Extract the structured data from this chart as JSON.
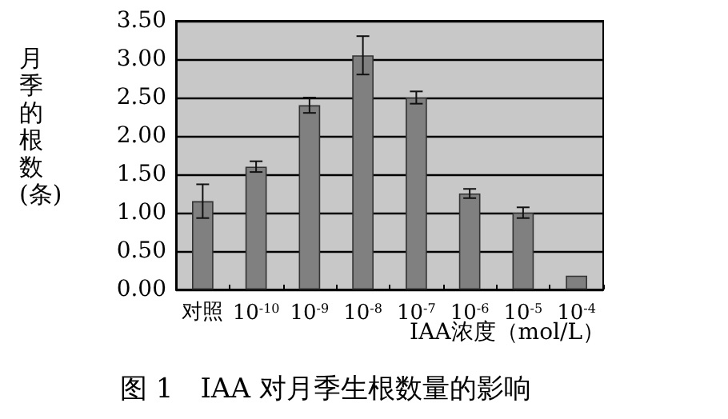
{
  "chart_data": {
    "type": "bar",
    "title": "图 1　IAA 对月季生根数量的影响",
    "xlabel": "IAA浓度（mol/L）",
    "ylabel": "月季的根数(条)",
    "categories": [
      "对照",
      "10$^{-10}$",
      "10$^{-9}$",
      "10$^{-8}$",
      "10$^{-7}$",
      "10$^{-6}$",
      "10$^{-5}$",
      "10$^{-4}$"
    ],
    "values": [
      1.15,
      1.6,
      2.4,
      3.05,
      2.5,
      1.25,
      1.0,
      0.18
    ],
    "errors": [
      0.22,
      0.07,
      0.1,
      0.25,
      0.08,
      0.06,
      0.07,
      null
    ],
    "color": "#808080",
    "ylim": [
      0,
      3.5
    ],
    "yticks": [
      {
        "value": 0,
        "label": "0.00"
      },
      {
        "value": 0.5,
        "label": "0.50"
      },
      {
        "value": 1,
        "label": "1.00"
      },
      {
        "value": 1.5,
        "label": "1.50"
      },
      {
        "value": 2,
        "label": "2.00"
      },
      {
        "value": 2.5,
        "label": "2.50"
      },
      {
        "value": 3,
        "label": "3.00"
      },
      {
        "value": 3.5,
        "label": "3.50"
      }
    ],
    "grid": "y"
  }
}
